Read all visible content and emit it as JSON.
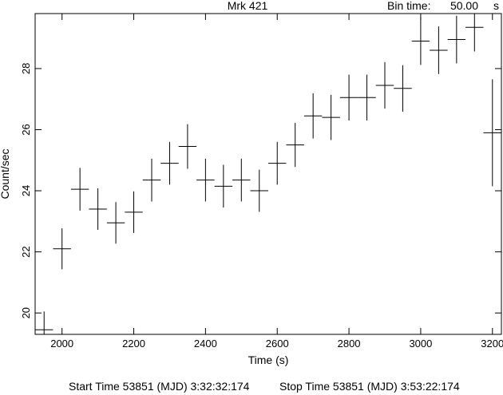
{
  "header": {
    "source": "Mrk 421",
    "bin_label": "Bin time:",
    "bin_value": "50.00",
    "bin_unit": "s"
  },
  "footer": {
    "start": "Start Time 53851 (MJD)  3:32:32:174",
    "stop": "Stop Time 53851 (MJD)  3:53:22:174"
  },
  "chart_data": {
    "type": "scatter",
    "title": "Mrk 421",
    "xlabel": "Time (s)",
    "ylabel": "Count/sec",
    "xlim": [
      1925,
      3225
    ],
    "ylim": [
      19.3,
      29.8
    ],
    "xticks": [
      2000,
      2200,
      2400,
      2600,
      2800,
      3000,
      3200
    ],
    "yticks": [
      20,
      22,
      24,
      26,
      28
    ],
    "x_halfwidth": 25,
    "grid": false,
    "series": [
      {
        "x": [
          1950,
          2000,
          2050,
          2100,
          2150,
          2200,
          2250,
          2300,
          2350,
          2400,
          2450,
          2500,
          2550,
          2600,
          2650,
          2700,
          2750,
          2800,
          2850,
          2900,
          2950,
          3000,
          3050,
          3100,
          3150,
          3200
        ],
        "y": [
          19.45,
          22.1,
          24.05,
          23.4,
          22.95,
          23.3,
          24.35,
          24.9,
          25.45,
          24.35,
          24.15,
          24.35,
          24.0,
          24.9,
          25.5,
          26.45,
          26.4,
          27.05,
          27.05,
          27.45,
          27.35,
          28.9,
          28.6,
          28.95,
          29.35,
          25.9
        ],
        "yerr": [
          0.6,
          0.67,
          0.7,
          0.68,
          0.68,
          0.68,
          0.7,
          0.7,
          0.73,
          0.7,
          0.7,
          0.7,
          0.69,
          0.7,
          0.72,
          0.74,
          0.74,
          0.75,
          0.75,
          0.76,
          0.76,
          0.78,
          0.78,
          0.78,
          0.79,
          1.75
        ]
      }
    ]
  }
}
